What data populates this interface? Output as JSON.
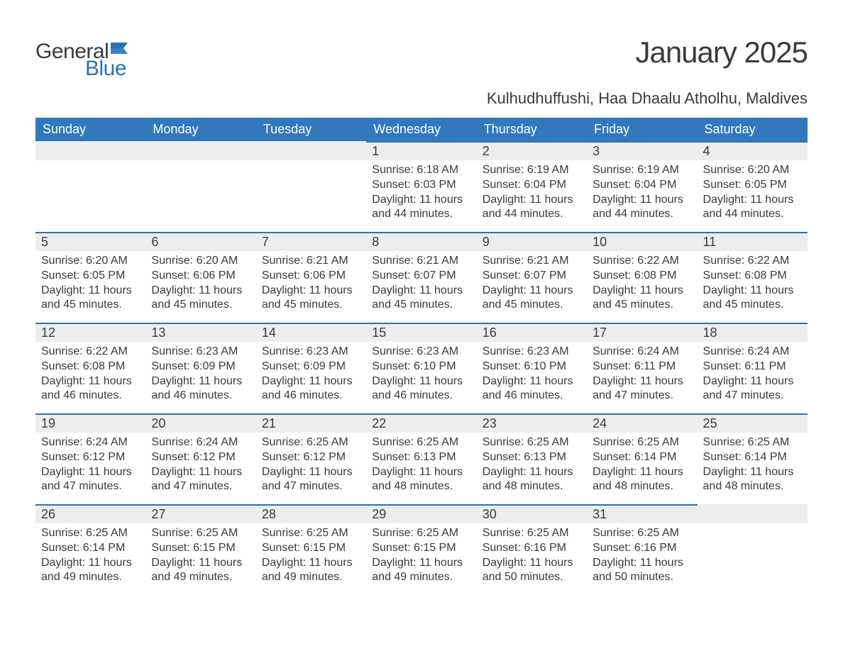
{
  "brand": {
    "general": "General",
    "blue": "Blue"
  },
  "title": "January 2025",
  "location": "Kulhudhuffushi, Haa Dhaalu Atholhu, Maldives",
  "colors": {
    "header_bg": "#3178bc",
    "header_text": "#ffffff",
    "accent": "#2a72b5",
    "daynum_bg": "#eceded",
    "body_text": "#3a3a3a",
    "page_bg": "#ffffff"
  },
  "calendar": {
    "type": "table",
    "columns": [
      "Sunday",
      "Monday",
      "Tuesday",
      "Wednesday",
      "Thursday",
      "Friday",
      "Saturday"
    ],
    "weeks": [
      [
        null,
        null,
        null,
        {
          "n": 1,
          "sunrise": "6:18 AM",
          "sunset": "6:03 PM",
          "daylight": "11 hours and 44 minutes."
        },
        {
          "n": 2,
          "sunrise": "6:19 AM",
          "sunset": "6:04 PM",
          "daylight": "11 hours and 44 minutes."
        },
        {
          "n": 3,
          "sunrise": "6:19 AM",
          "sunset": "6:04 PM",
          "daylight": "11 hours and 44 minutes."
        },
        {
          "n": 4,
          "sunrise": "6:20 AM",
          "sunset": "6:05 PM",
          "daylight": "11 hours and 44 minutes."
        }
      ],
      [
        {
          "n": 5,
          "sunrise": "6:20 AM",
          "sunset": "6:05 PM",
          "daylight": "11 hours and 45 minutes."
        },
        {
          "n": 6,
          "sunrise": "6:20 AM",
          "sunset": "6:06 PM",
          "daylight": "11 hours and 45 minutes."
        },
        {
          "n": 7,
          "sunrise": "6:21 AM",
          "sunset": "6:06 PM",
          "daylight": "11 hours and 45 minutes."
        },
        {
          "n": 8,
          "sunrise": "6:21 AM",
          "sunset": "6:07 PM",
          "daylight": "11 hours and 45 minutes."
        },
        {
          "n": 9,
          "sunrise": "6:21 AM",
          "sunset": "6:07 PM",
          "daylight": "11 hours and 45 minutes."
        },
        {
          "n": 10,
          "sunrise": "6:22 AM",
          "sunset": "6:08 PM",
          "daylight": "11 hours and 45 minutes."
        },
        {
          "n": 11,
          "sunrise": "6:22 AM",
          "sunset": "6:08 PM",
          "daylight": "11 hours and 45 minutes."
        }
      ],
      [
        {
          "n": 12,
          "sunrise": "6:22 AM",
          "sunset": "6:08 PM",
          "daylight": "11 hours and 46 minutes."
        },
        {
          "n": 13,
          "sunrise": "6:23 AM",
          "sunset": "6:09 PM",
          "daylight": "11 hours and 46 minutes."
        },
        {
          "n": 14,
          "sunrise": "6:23 AM",
          "sunset": "6:09 PM",
          "daylight": "11 hours and 46 minutes."
        },
        {
          "n": 15,
          "sunrise": "6:23 AM",
          "sunset": "6:10 PM",
          "daylight": "11 hours and 46 minutes."
        },
        {
          "n": 16,
          "sunrise": "6:23 AM",
          "sunset": "6:10 PM",
          "daylight": "11 hours and 46 minutes."
        },
        {
          "n": 17,
          "sunrise": "6:24 AM",
          "sunset": "6:11 PM",
          "daylight": "11 hours and 47 minutes."
        },
        {
          "n": 18,
          "sunrise": "6:24 AM",
          "sunset": "6:11 PM",
          "daylight": "11 hours and 47 minutes."
        }
      ],
      [
        {
          "n": 19,
          "sunrise": "6:24 AM",
          "sunset": "6:12 PM",
          "daylight": "11 hours and 47 minutes."
        },
        {
          "n": 20,
          "sunrise": "6:24 AM",
          "sunset": "6:12 PM",
          "daylight": "11 hours and 47 minutes."
        },
        {
          "n": 21,
          "sunrise": "6:25 AM",
          "sunset": "6:12 PM",
          "daylight": "11 hours and 47 minutes."
        },
        {
          "n": 22,
          "sunrise": "6:25 AM",
          "sunset": "6:13 PM",
          "daylight": "11 hours and 48 minutes."
        },
        {
          "n": 23,
          "sunrise": "6:25 AM",
          "sunset": "6:13 PM",
          "daylight": "11 hours and 48 minutes."
        },
        {
          "n": 24,
          "sunrise": "6:25 AM",
          "sunset": "6:14 PM",
          "daylight": "11 hours and 48 minutes."
        },
        {
          "n": 25,
          "sunrise": "6:25 AM",
          "sunset": "6:14 PM",
          "daylight": "11 hours and 48 minutes."
        }
      ],
      [
        {
          "n": 26,
          "sunrise": "6:25 AM",
          "sunset": "6:14 PM",
          "daylight": "11 hours and 49 minutes."
        },
        {
          "n": 27,
          "sunrise": "6:25 AM",
          "sunset": "6:15 PM",
          "daylight": "11 hours and 49 minutes."
        },
        {
          "n": 28,
          "sunrise": "6:25 AM",
          "sunset": "6:15 PM",
          "daylight": "11 hours and 49 minutes."
        },
        {
          "n": 29,
          "sunrise": "6:25 AM",
          "sunset": "6:15 PM",
          "daylight": "11 hours and 49 minutes."
        },
        {
          "n": 30,
          "sunrise": "6:25 AM",
          "sunset": "6:16 PM",
          "daylight": "11 hours and 50 minutes."
        },
        {
          "n": 31,
          "sunrise": "6:25 AM",
          "sunset": "6:16 PM",
          "daylight": "11 hours and 50 minutes."
        },
        null
      ]
    ],
    "labels": {
      "sunrise": "Sunrise:",
      "sunset": "Sunset:",
      "daylight": "Daylight:"
    }
  }
}
